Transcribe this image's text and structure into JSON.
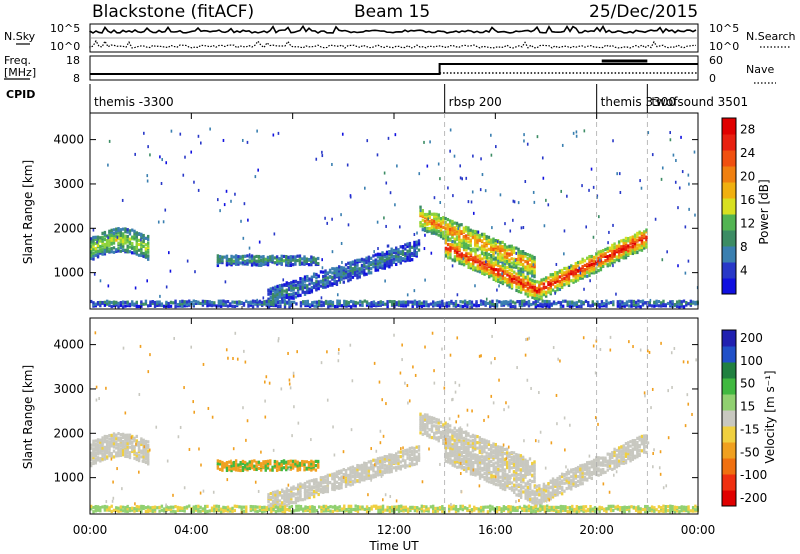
{
  "header": {
    "station": "Blackstone (fitACF)",
    "beam": "Beam 15",
    "date": "25/Dec/2015"
  },
  "top_panels": {
    "nsky_label": "N.Sky",
    "nsky_ticks": [
      "10^5",
      "10^0"
    ],
    "nsearch_label": "N.Search",
    "freq_label_line1": "Freq.",
    "freq_label_line2": "[MHz]",
    "freq_ticks": [
      "18",
      "8"
    ],
    "nave_label": "Nave",
    "nave_ticks": [
      "60",
      "0"
    ],
    "cpid_label": "CPID",
    "cpid_segments": [
      {
        "label": "themis -3300",
        "start_hour": 0.0
      },
      {
        "label": "rbsp 200",
        "start_hour": 14.0
      },
      {
        "label": "themis 3300",
        "start_hour": 20.0
      },
      {
        "label": "twofsound 3501",
        "start_hour": 22.0
      }
    ]
  },
  "chart_data": [
    {
      "type": "heatmap",
      "name": "power",
      "xlabel": "Time UT",
      "ylabel": "Slant Range [km]",
      "x_tick_labels": [
        "00:00",
        "04:00",
        "08:00",
        "12:00",
        "16:00",
        "20:00",
        "00:00"
      ],
      "x_hours": [
        0,
        4,
        8,
        12,
        16,
        20,
        24
      ],
      "y_ticks": [
        1000,
        2000,
        3000,
        4000
      ],
      "ylim": [
        180,
        4600
      ],
      "colorbar": {
        "label": "Power [dB]",
        "ticks": [
          4,
          8,
          12,
          16,
          20,
          24,
          28
        ],
        "range": [
          0,
          30
        ],
        "colors": [
          "#1010e0",
          "#2838c8",
          "#3a7fb0",
          "#3c8c64",
          "#52b452",
          "#8cd23c",
          "#d8e020",
          "#f0b010",
          "#f08010",
          "#f05010",
          "#e82010",
          "#e00000"
        ]
      },
      "echo_bands": [
        {
          "name": "pre-dawn range band",
          "start_hour": 0.0,
          "end_hour": 2.3,
          "range_km": 1550,
          "thickness_km": 550,
          "power_db": 12
        },
        {
          "name": "morning scatter band",
          "start_hour": 5.0,
          "end_hour": 9.0,
          "range_km": 1280,
          "thickness_km": 220,
          "power_db": 8
        },
        {
          "name": "midday rising band",
          "start_hour": 7.0,
          "end_hour": 13.0,
          "range_km": 950,
          "thickness_km": 400,
          "power_db": 6
        },
        {
          "name": "evening descending band",
          "start_hour": 13.0,
          "end_hour": 17.5,
          "range_km": 1350,
          "thickness_km": 500,
          "power_db": 18
        },
        {
          "name": "evening main band",
          "start_hour": 14.0,
          "end_hour": 22.0,
          "range_km": 1200,
          "thickness_km": 450,
          "power_db": 22
        },
        {
          "name": "near-range ground band",
          "start_hour": 0.0,
          "end_hour": 24.0,
          "range_km": 300,
          "thickness_km": 120,
          "power_db": 6
        }
      ]
    },
    {
      "type": "heatmap",
      "name": "velocity",
      "xlabel": "Time UT",
      "ylabel": "Slant Range [km]",
      "x_tick_labels": [
        "00:00",
        "04:00",
        "08:00",
        "12:00",
        "16:00",
        "20:00",
        "00:00"
      ],
      "x_hours": [
        0,
        4,
        8,
        12,
        16,
        20,
        24
      ],
      "y_ticks": [
        1000,
        2000,
        3000,
        4000
      ],
      "ylim": [
        180,
        4600
      ],
      "colorbar": {
        "label": "Velocity [m s⁻¹]",
        "ticks": [
          200,
          100,
          50,
          15,
          -15,
          -50,
          -100,
          -200
        ],
        "colors": [
          "#2020b0",
          "#2050c8",
          "#208040",
          "#40b840",
          "#90d070",
          "#c8c8c0",
          "#f0d040",
          "#f0a020",
          "#f07010",
          "#f03010",
          "#e00000"
        ]
      },
      "dominant_velocity_ms": {
        "evening bands": 0,
        "morning band": -60,
        "near-range band": 80
      }
    }
  ]
}
